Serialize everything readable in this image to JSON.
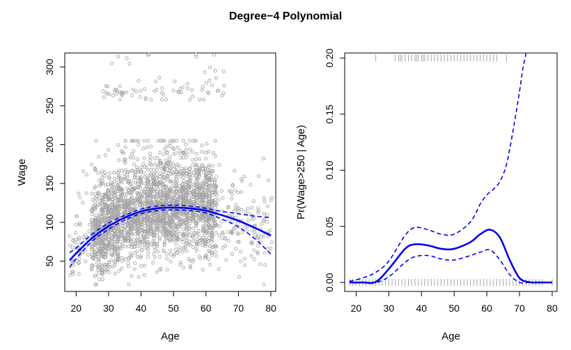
{
  "chart_data": {
    "title": "Degree−4 Polynomial",
    "panels": [
      {
        "type": "scatter",
        "xlabel": "Age",
        "ylabel": "Wage",
        "xlim": [
          16.5,
          81.5
        ],
        "ylim": [
          11,
          318
        ],
        "xticks": [
          20,
          30,
          40,
          50,
          60,
          70,
          80
        ],
        "yticks": [
          50,
          100,
          150,
          200,
          250,
          300
        ],
        "points": {
          "n_low": 2700,
          "n_high": 80,
          "x_range": [
            18,
            80
          ],
          "high_x_range": [
            28,
            66
          ],
          "high_y_range": [
            258,
            320
          ],
          "color": "#a6a6a6",
          "description": "wage vs age scatter of individual observations"
        },
        "series": [
          {
            "name": "fit",
            "style": "solid",
            "color": "#0000ee",
            "x": [
              18,
              20,
              25,
              30,
              35,
              40,
              45,
              50,
              55,
              60,
              65,
              70,
              75,
              80
            ],
            "values": [
              51,
              60,
              80,
              95,
              106,
              114,
              118,
              119,
              118,
              115,
              109,
              102,
              93,
              83
            ]
          },
          {
            "name": "upper",
            "style": "dashed",
            "color": "#0000ee",
            "x": [
              18,
              20,
              25,
              30,
              35,
              40,
              45,
              50,
              55,
              60,
              65,
              70,
              75,
              80
            ],
            "values": [
              61,
              67,
              85,
              99,
              109,
              117,
              121,
              122,
              121,
              118,
              114,
              111,
              108,
              106
            ]
          },
          {
            "name": "lower",
            "style": "dashed",
            "color": "#0000ee",
            "x": [
              18,
              20,
              25,
              30,
              35,
              40,
              45,
              50,
              55,
              60,
              65,
              70,
              75,
              80
            ],
            "values": [
              42,
              53,
              76,
              91,
              103,
              111,
              115,
              116,
              115,
              112,
              104,
              94,
              79,
              59
            ]
          }
        ]
      },
      {
        "type": "line",
        "xlabel": "Age",
        "ylabel": "Pr(Wage>250 | Age)",
        "xlim": [
          16.5,
          81.5
        ],
        "ylim": [
          -0.008,
          0.2045
        ],
        "xticks": [
          20,
          30,
          40,
          50,
          60,
          70,
          80
        ],
        "yticks": [
          "0.00",
          "0.05",
          "0.10",
          "0.15",
          "0.20"
        ],
        "rug_top": [
          26,
          32,
          33,
          33.5,
          34,
          35,
          36,
          37,
          38,
          38.5,
          39,
          40,
          40.5,
          41,
          42,
          43,
          44,
          45,
          46,
          47,
          48,
          49,
          50,
          51,
          52,
          53,
          54,
          55,
          56,
          57,
          58,
          59,
          60,
          61,
          62,
          63,
          66
        ],
        "rug_bottom": [
          18,
          19,
          20,
          21,
          22,
          23,
          24,
          25,
          26,
          27,
          28,
          29,
          30,
          31,
          32,
          33,
          34,
          35,
          36,
          37,
          38,
          39,
          40,
          41,
          42,
          43,
          44,
          45,
          46,
          47,
          48,
          49,
          50,
          51,
          52,
          53,
          54,
          55,
          56,
          57,
          58,
          59,
          60,
          61,
          62,
          63,
          64,
          65,
          66,
          67,
          68,
          69,
          70,
          71,
          72,
          73,
          74,
          75,
          76,
          77,
          80
        ],
        "series": [
          {
            "name": "fit",
            "style": "solid",
            "color": "#0000ee",
            "x": [
              18,
              22,
              26,
              30,
              35,
              38,
              42,
              46,
              50,
              55,
              58,
              61,
              64,
              67,
              70,
              73,
              76,
              80
            ],
            "values": [
              0.0,
              0.0,
              0.0005,
              0.012,
              0.03,
              0.034,
              0.033,
              0.03,
              0.03,
              0.036,
              0.043,
              0.047,
              0.04,
              0.02,
              0.004,
              0.0003,
              0.0,
              0.0
            ]
          },
          {
            "name": "upper",
            "style": "dashed",
            "color": "#0000ee",
            "x": [
              18,
              22,
              26,
              30,
              35,
              38,
              42,
              46,
              50,
              55,
              58,
              60,
              62,
              64,
              66,
              68,
              70,
              71,
              72
            ],
            "values": [
              0.001,
              0.004,
              0.009,
              0.019,
              0.042,
              0.049,
              0.047,
              0.043,
              0.043,
              0.054,
              0.07,
              0.078,
              0.083,
              0.09,
              0.105,
              0.135,
              0.17,
              0.19,
              0.204
            ]
          },
          {
            "name": "lower",
            "style": "dashed",
            "color": "#0000ee",
            "x": [
              18,
              22,
              26,
              30,
              35,
              38,
              42,
              46,
              50,
              55,
              58,
              61,
              64,
              67,
              70,
              73,
              76,
              80
            ],
            "values": [
              0.0,
              0.0,
              0.0,
              0.005,
              0.018,
              0.023,
              0.024,
              0.021,
              0.02,
              0.024,
              0.027,
              0.029,
              0.02,
              0.007,
              0.0,
              0.0,
              0.0,
              0.0
            ]
          }
        ]
      }
    ]
  }
}
